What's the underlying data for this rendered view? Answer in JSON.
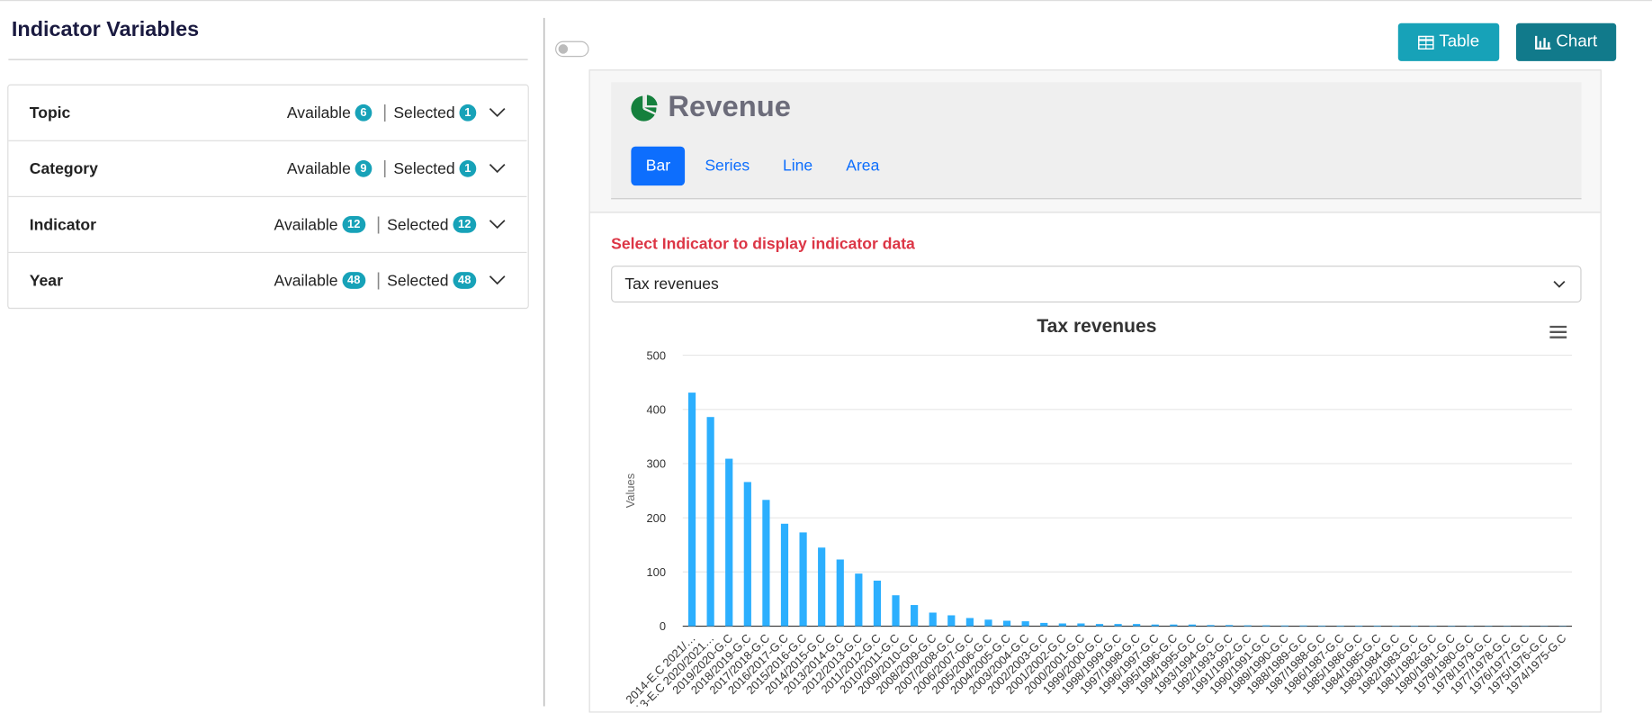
{
  "sidebar": {
    "title": "Indicator Variables",
    "filters": [
      {
        "name": "Topic",
        "available_label": "Available",
        "available": 6,
        "selected_label": "Selected",
        "selected": 1
      },
      {
        "name": "Category",
        "available_label": "Available",
        "available": 9,
        "selected_label": "Selected",
        "selected": 1
      },
      {
        "name": "Indicator",
        "available_label": "Available",
        "available": 12,
        "selected_label": "Selected",
        "selected": 12
      },
      {
        "name": "Year",
        "available_label": "Available",
        "available": 48,
        "selected_label": "Selected",
        "selected": 48
      }
    ]
  },
  "buttons": [
    "Table",
    "Chart"
  ],
  "header": {
    "title": "Revenue"
  },
  "tabs": [
    "Bar",
    "Series",
    "Line",
    "Area"
  ],
  "prompt": "Select Indicator to display indicator data",
  "select": "Tax revenues",
  "chart_data": {
    "type": "bar",
    "title": "Tax revenues",
    "y_label": "Values",
    "color": "#2caffe",
    "categories": [
      "2014-E.C 2021/…",
      "2013-E.C 2020/2021…",
      "2019/2020-G.C",
      "2018/2019-G.C",
      "2017/2018-G.C",
      "2016/2017-G.C",
      "2015/2016-G.C",
      "2014/2015-G.C",
      "2013/2014-G.C",
      "2012/2013-G.C",
      "2011/2012-G.C",
      "2010/2011-G.C",
      "2009/2010-G.C",
      "2008/2009-G.C",
      "2007/2008-G.C",
      "2006/2007-G.C",
      "2005/2006-G.C",
      "2004/2005-G.C",
      "2003/2004-G.C",
      "2002/2003-G.C",
      "2001/2002-G.C",
      "2000/2001-G.C",
      "1999/2000-G.C",
      "1998/1999-G.C",
      "1997/1998-G.C",
      "1996/1997-G.C",
      "1995/1996-G.C",
      "1994/1995-G.C",
      "1993/1994-G.C",
      "1992/1993-G.C",
      "1991/1992-G.C",
      "1990/1991-G.C",
      "1989/1990-G.C",
      "1988/1989-G.C",
      "1987/1988-G.C",
      "1986/1987-G.C",
      "1985/1986-G.C",
      "1984/1985-G.C",
      "1983/1984-G.C",
      "1982/1983-G.C",
      "1981/1982-G.C",
      "1980/1981-G.C",
      "1979/1980-G.C",
      "1978/1979-G.C",
      "1977/1978-G.C",
      "1976/1977-G.C",
      "1975/1976-G.C",
      "1974/1975-G.C"
    ],
    "values": [
      431,
      386,
      309,
      266,
      233,
      189,
      173,
      145,
      123,
      97,
      84,
      57,
      39,
      25,
      20,
      15,
      12,
      10,
      9,
      6,
      5,
      5,
      4,
      4,
      4,
      3,
      3,
      3,
      2,
      2,
      1.5,
      1.5,
      1.2,
      1.2,
      1,
      1,
      1,
      1,
      0.8,
      0.8,
      0.7,
      0.7,
      0.6,
      0.6,
      0.5,
      0.5,
      0.5,
      0.5
    ],
    "ylim": [
      0,
      500
    ],
    "yticks": [
      0,
      100,
      200,
      300,
      400,
      500
    ],
    "grid": true
  }
}
